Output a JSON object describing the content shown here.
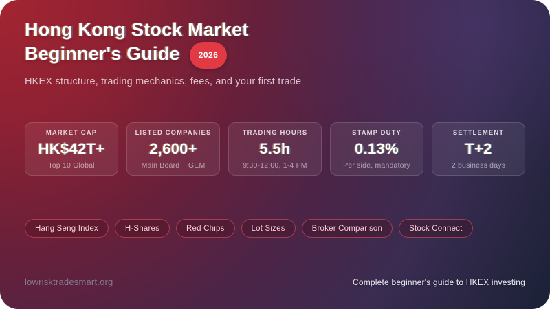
{
  "page": {
    "title_line1": "Hong Kong Stock Market",
    "title_line2": "Beginner's Guide",
    "year_badge": "2026",
    "subtitle": "HKEX structure, trading mechanics, fees, and your first trade"
  },
  "stats": [
    {
      "label": "MARKET CAP",
      "value": "HK$42T+",
      "sub": "Top 10 Global"
    },
    {
      "label": "LISTED COMPANIES",
      "value": "2,600+",
      "sub": "Main Board + GEM"
    },
    {
      "label": "TRADING HOURS",
      "value": "5.5h",
      "sub": "9:30-12:00, 1-4 PM"
    },
    {
      "label": "STAMP DUTY",
      "value": "0.13%",
      "sub": "Per side, mandatory"
    },
    {
      "label": "SETTLEMENT",
      "value": "T+2",
      "sub": "2 business days"
    }
  ],
  "tags": [
    "Hang Seng Index",
    "H-Shares",
    "Red Chips",
    "Lot Sizes",
    "Broker Comparison",
    "Stock Connect"
  ],
  "footer": {
    "site": "lowrisktradesmart.org",
    "tagline": "Complete beginner's guide to HKEX investing"
  },
  "colors": {
    "badge_red": "#e23a44",
    "gradient_start": "#a32531",
    "gradient_mid": "#4c2447",
    "gradient_end": "#1a2136",
    "pill_border": "#ee5a64",
    "pill_text": "#ffcdd3"
  }
}
